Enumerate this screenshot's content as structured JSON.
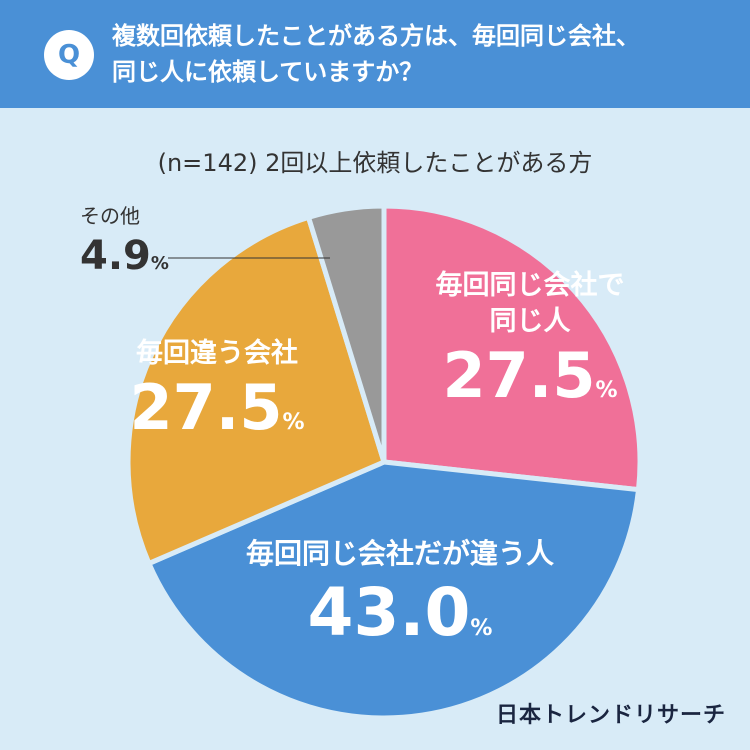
{
  "header": {
    "q_badge": "Q",
    "question_line1": "複数回依頼したことがある方は、毎回同じ会社、",
    "question_line2": "同じ人に依頼していますか？"
  },
  "subtitle": "(n=142) 2回以上依頼したことがある方",
  "brand": "日本トレンドリサーチ",
  "chart_data": {
    "type": "pie",
    "title": "(n=142) 2回以上依頼したことがある方",
    "start_angle_deg": 0,
    "direction": "clockwise",
    "slices": [
      {
        "label_lines": [
          "毎回同じ会社で",
          "同じ人"
        ],
        "value": 27.5,
        "value_text": "27.5",
        "unit": "%",
        "color": "#f07098"
      },
      {
        "label_lines": [
          "毎回同じ会社だが違う人"
        ],
        "value": 43.0,
        "value_text": "43.0",
        "unit": "%",
        "color": "#4a90d6"
      },
      {
        "label_lines": [
          "毎回違う会社"
        ],
        "value": 27.5,
        "value_text": "27.5",
        "unit": "%",
        "color": "#e8a83c"
      },
      {
        "label_lines": [
          "その他"
        ],
        "value": 4.9,
        "value_text": "4.9",
        "unit": "%",
        "color": "#999999"
      }
    ]
  }
}
